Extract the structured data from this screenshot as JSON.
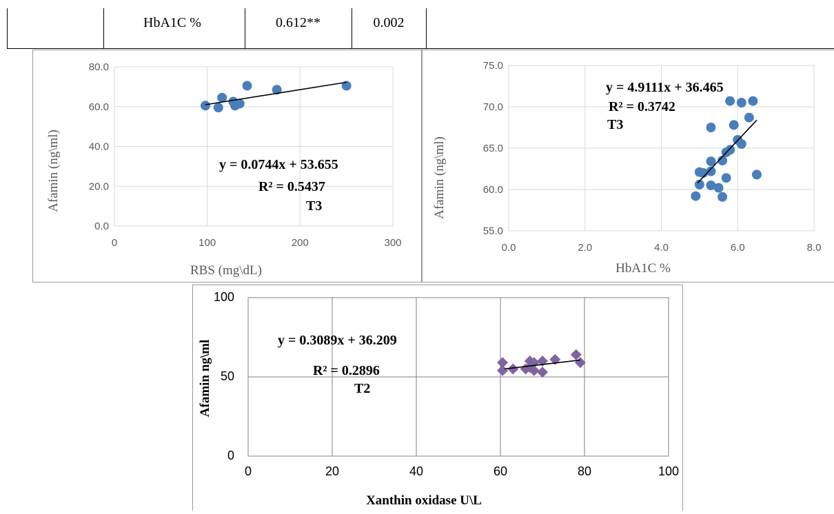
{
  "table": {
    "row": [
      "",
      "HbA1C %",
      "0.612**",
      "0.002"
    ]
  },
  "chart_data": [
    {
      "type": "scatter",
      "xlabel": "RBS (mg\\dL)",
      "ylabel": "Afamin (ng\\ml)",
      "xlim": [
        0,
        300
      ],
      "ylim": [
        0,
        80
      ],
      "xticks": [
        0,
        100,
        200,
        300
      ],
      "yticks": [
        "0.0",
        "20.0",
        "40.0",
        "60.0",
        "80.0"
      ],
      "grid": true,
      "marker": "circle",
      "color": "#4a7ebb",
      "points": [
        [
          98,
          60.5
        ],
        [
          112,
          59.5
        ],
        [
          116,
          64.5
        ],
        [
          128,
          62.5
        ],
        [
          130,
          60.5
        ],
        [
          135,
          61.5
        ],
        [
          143,
          70.5
        ],
        [
          175,
          68.5
        ],
        [
          250,
          70.5
        ]
      ],
      "trendline": {
        "slope": 0.0744,
        "intercept": 53.655,
        "x_range": [
          98,
          250
        ]
      },
      "annotations": [
        "y = 0.0744x + 53.655",
        "R² = 0.5437",
        "T3"
      ]
    },
    {
      "type": "scatter",
      "xlabel": "HbA1C %",
      "ylabel": "Afamin (ng\\ml)",
      "xlim": [
        0,
        8
      ],
      "ylim": [
        55,
        75
      ],
      "xticks": [
        "0.0",
        "2.0",
        "4.0",
        "6.0",
        "8.0"
      ],
      "yticks": [
        "55.0",
        "60.0",
        "65.0",
        "70.0",
        "75.0"
      ],
      "grid": true,
      "marker": "circle",
      "color": "#4a7ebb",
      "points": [
        [
          4.9,
          59.2
        ],
        [
          5.0,
          62.1
        ],
        [
          5.0,
          60.6
        ],
        [
          5.1,
          62.0
        ],
        [
          5.3,
          67.5
        ],
        [
          5.3,
          63.4
        ],
        [
          5.3,
          62.2
        ],
        [
          5.3,
          60.5
        ],
        [
          5.5,
          60.2
        ],
        [
          5.6,
          59.1
        ],
        [
          5.6,
          63.5
        ],
        [
          5.7,
          61.4
        ],
        [
          5.7,
          64.5
        ],
        [
          5.8,
          64.8
        ],
        [
          5.8,
          70.7
        ],
        [
          5.9,
          67.8
        ],
        [
          6.0,
          66.0
        ],
        [
          6.1,
          70.5
        ],
        [
          6.1,
          65.5
        ],
        [
          6.3,
          68.7
        ],
        [
          6.4,
          70.7
        ],
        [
          6.5,
          61.8
        ]
      ],
      "trendline": {
        "slope": 4.9111,
        "intercept": 36.465,
        "x_range": [
          4.95,
          6.5
        ]
      },
      "annotations": [
        "y = 4.9111x + 36.465",
        "R² = 0.3742",
        "T3"
      ]
    },
    {
      "type": "scatter",
      "xlabel": "Xanthin oxidase  U\\L",
      "ylabel": "Afamin ng\\ml",
      "xlim": [
        0,
        100
      ],
      "ylim": [
        0,
        100
      ],
      "xticks": [
        0,
        20,
        40,
        60,
        80,
        100
      ],
      "yticks": [
        0,
        50,
        100
      ],
      "grid": true,
      "marker": "diamond",
      "color": "#8064a2",
      "points": [
        [
          60.5,
          59
        ],
        [
          60.5,
          54
        ],
        [
          63,
          55
        ],
        [
          66,
          55
        ],
        [
          67,
          56
        ],
        [
          67,
          60
        ],
        [
          68,
          59
        ],
        [
          68,
          54
        ],
        [
          70,
          60
        ],
        [
          70,
          53
        ],
        [
          73,
          61
        ],
        [
          78,
          64
        ],
        [
          79,
          59
        ]
      ],
      "trendline": {
        "slope": 0.3089,
        "intercept": 36.209,
        "x_range": [
          61,
          79
        ]
      },
      "annotations": [
        "y = 0.3089x + 36.209",
        "R² = 0.2896",
        "T2"
      ]
    }
  ]
}
